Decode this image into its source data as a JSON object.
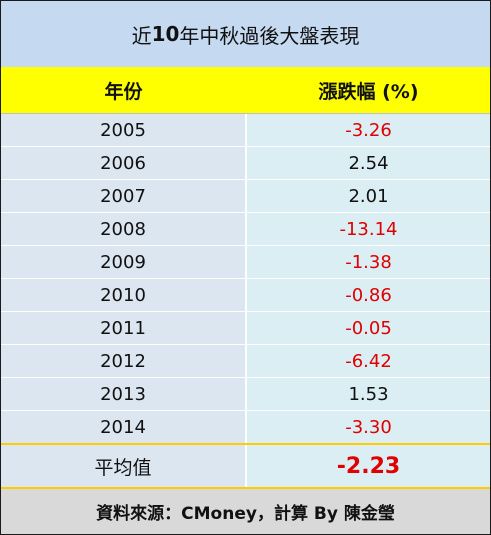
{
  "title": {
    "prefix": "近 ",
    "number": "10",
    "suffix": " 年中秋過後大盤表現"
  },
  "header": {
    "year": "年份",
    "change": "漲跌幅 (%)"
  },
  "rows": [
    {
      "year": "2005",
      "value": "-3.26"
    },
    {
      "year": "2006",
      "value": "2.54"
    },
    {
      "year": "2007",
      "value": "2.01"
    },
    {
      "year": "2008",
      "value": "-13.14"
    },
    {
      "year": "2009",
      "value": "-1.38"
    },
    {
      "year": "2010",
      "value": "-0.86"
    },
    {
      "year": "2011",
      "value": "-0.05"
    },
    {
      "year": "2012",
      "value": "-6.42"
    },
    {
      "year": "2013",
      "value": "1.53"
    },
    {
      "year": "2014",
      "value": "-3.30"
    }
  ],
  "average": {
    "label": "平均值",
    "value": "-2.23"
  },
  "footer": "資料來源：CMoney，計算 By 陳金瑩",
  "colors": {
    "title_bg": "#c5d9f1",
    "header_bg": "#ffff00",
    "year_cell_bg": "#dce6f1",
    "value_cell_bg": "#daeef3",
    "negative": "#e00000",
    "footer_bg": "#d9d9d9"
  }
}
